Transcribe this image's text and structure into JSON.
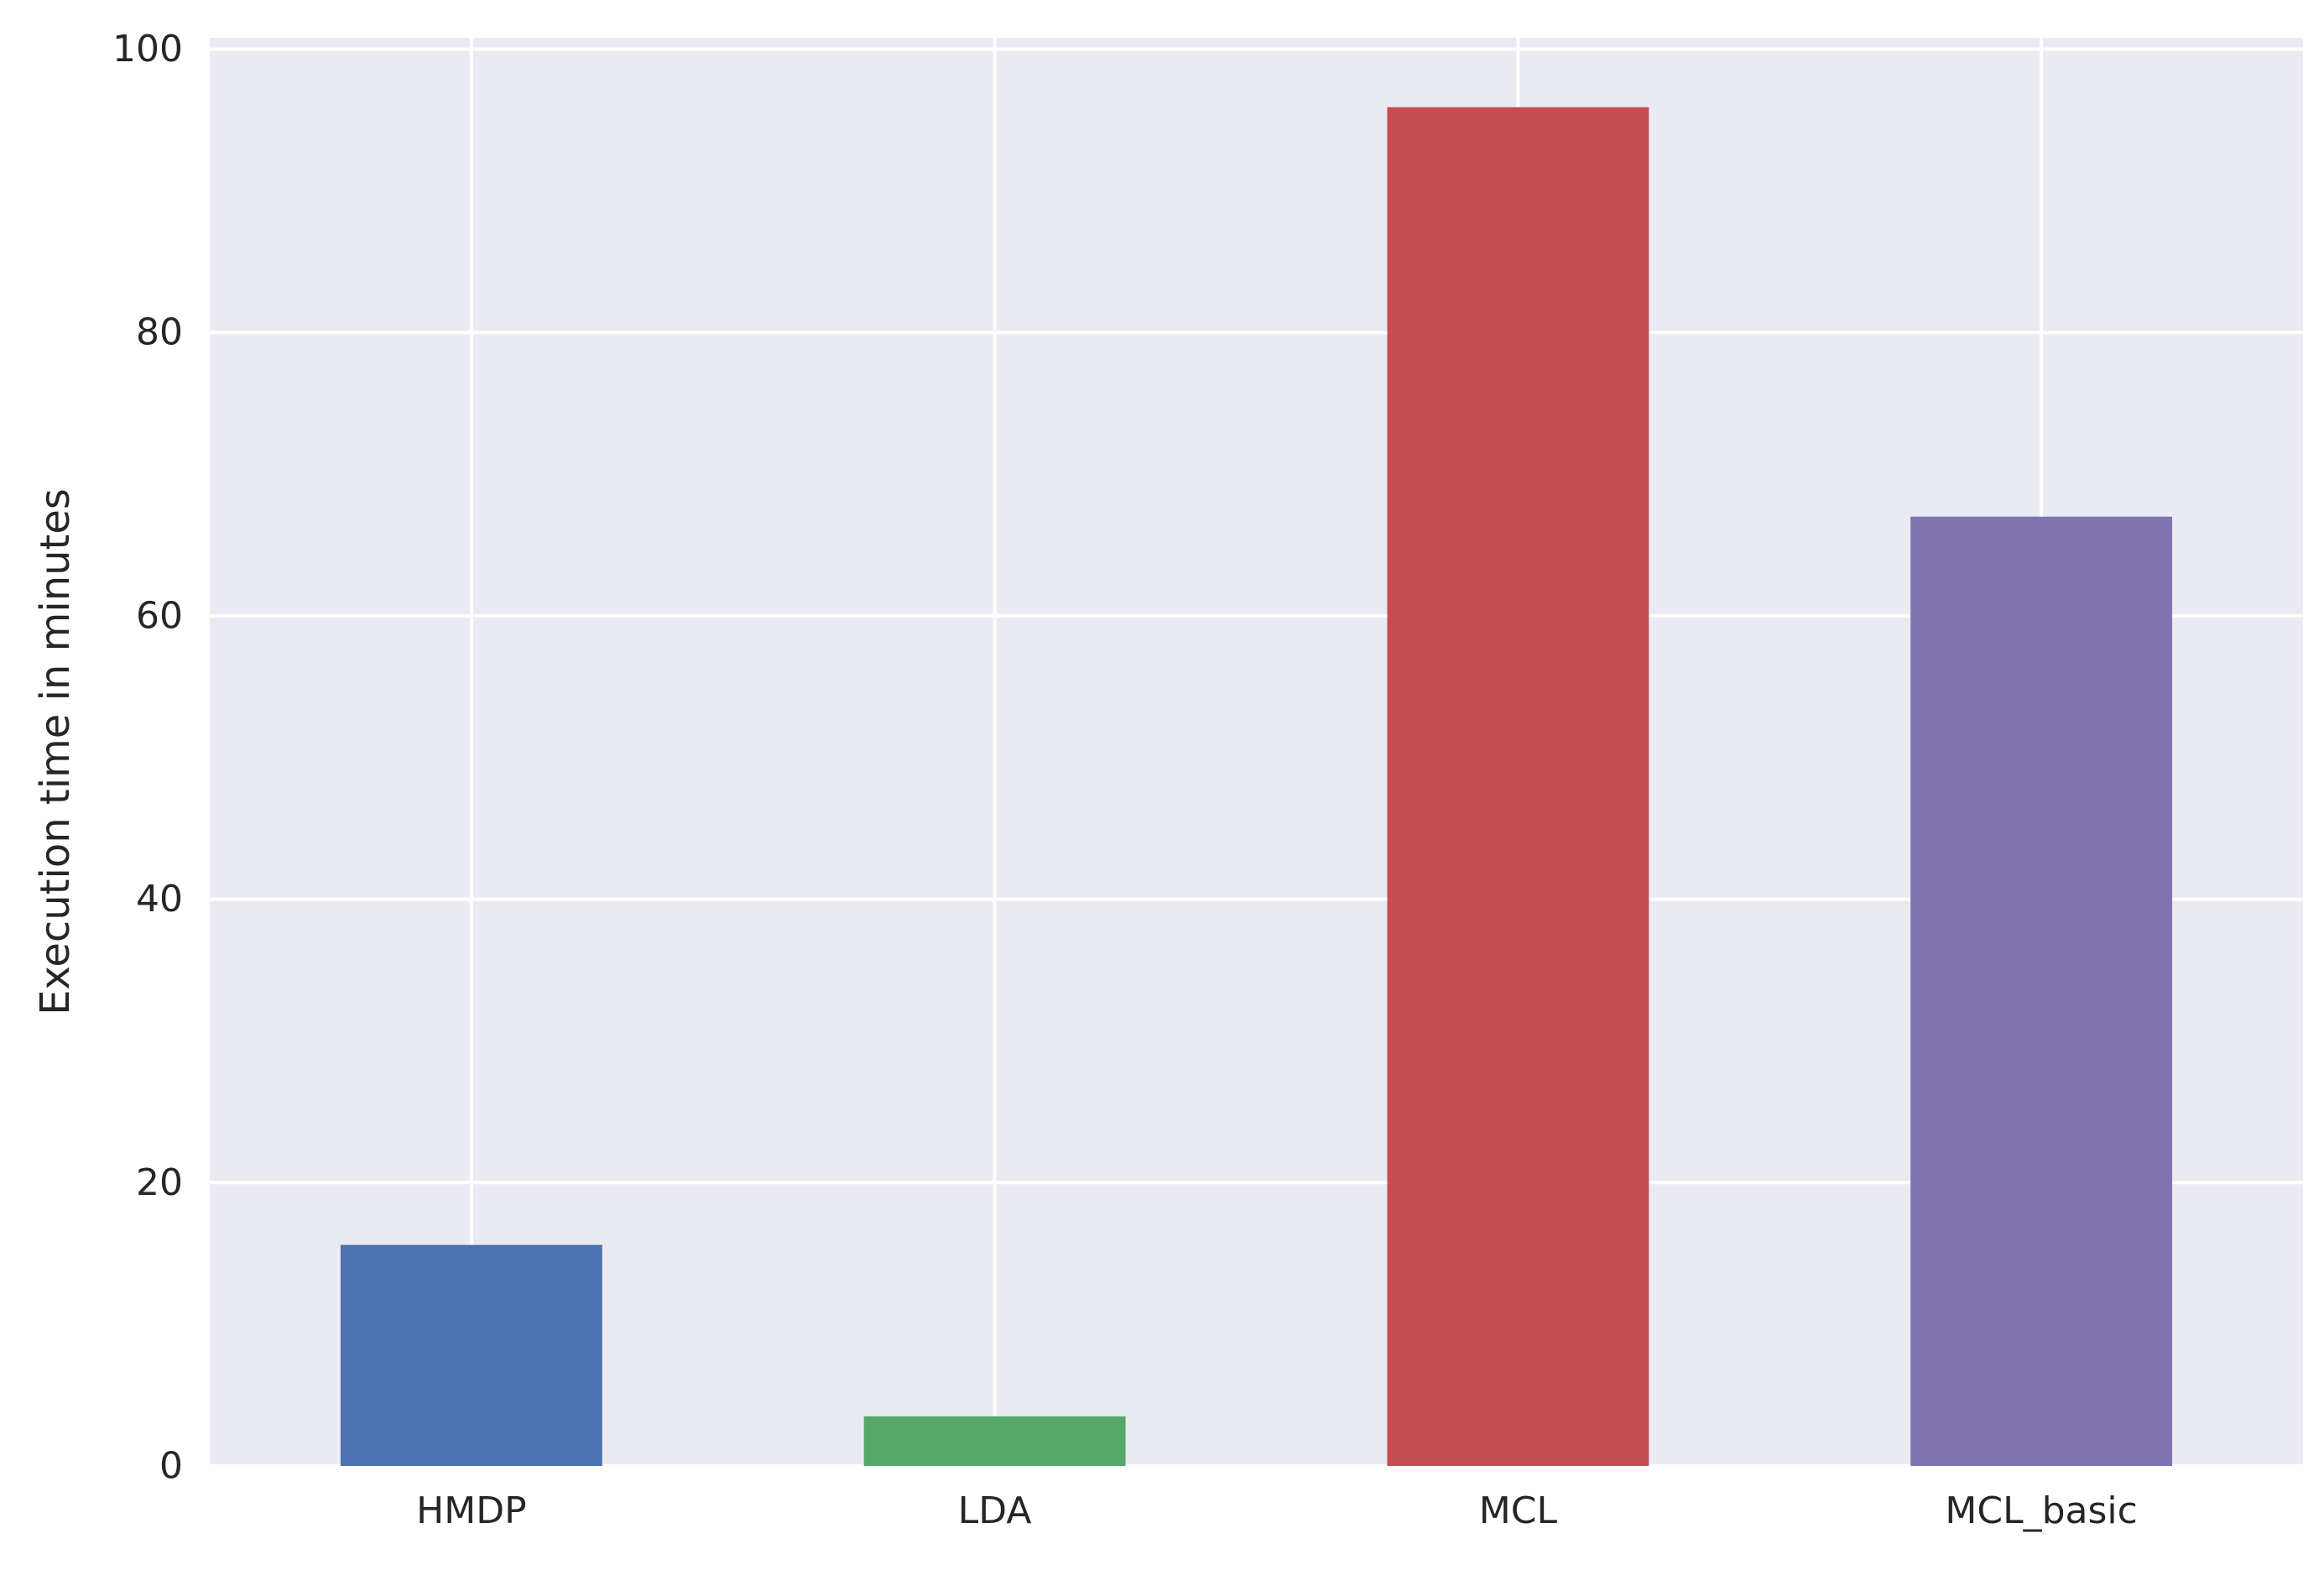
{
  "chart_data": {
    "type": "bar",
    "categories": [
      "HMDP",
      "LDA",
      "MCL",
      "MCL_basic"
    ],
    "values": [
      15.6,
      3.5,
      95.9,
      67.0
    ],
    "colors": [
      "#4C72B0",
      "#55A868",
      "#C44E52",
      "#8172B2"
    ],
    "title": "",
    "xlabel": "",
    "ylabel": "Execution time in minutes",
    "ylim": [
      0,
      100.8
    ],
    "yticks": [
      0,
      20,
      40,
      60,
      80,
      100
    ],
    "grid": true,
    "background": "#EAEAF2",
    "grid_color": "#FFFFFF",
    "text_color": "#262626"
  }
}
